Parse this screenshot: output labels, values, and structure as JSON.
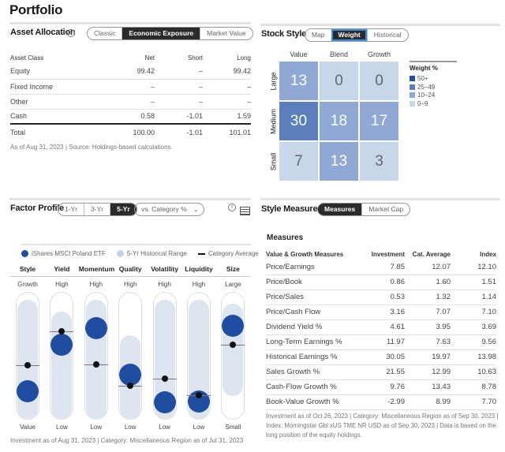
{
  "page_title": "Portfolio",
  "asset_allocation": {
    "title": "Asset Allocation",
    "tabs": [
      "Classic",
      "Economic Exposure",
      "Market Value"
    ],
    "active_tab": "Economic Exposure",
    "headers": [
      "Asset Class",
      "Net",
      "Short",
      "Long"
    ],
    "rows": [
      [
        "Equity",
        "99.42",
        "–",
        "99.42"
      ],
      [
        "Fixed Income",
        "–",
        "–",
        "–"
      ],
      [
        "Other",
        "–",
        "–",
        "–"
      ],
      [
        "Cash",
        "0.58",
        "-1.01",
        "1.59"
      ]
    ],
    "total": [
      "Total",
      "100.00",
      "-1.01",
      "101.01"
    ],
    "footnote": "As of Aug 31, 2023 | Source: Holdings-based calculations."
  },
  "stock_style": {
    "title": "Stock Style",
    "tabs": [
      "Map",
      "Weight",
      "Historical"
    ],
    "active_tab": "Weight",
    "columns": [
      "Value",
      "Blend",
      "Growth"
    ],
    "rows": [
      "Large",
      "Medium",
      "Small"
    ],
    "values": [
      [
        13,
        0,
        0
      ],
      [
        30,
        18,
        17
      ],
      [
        7,
        13,
        3
      ]
    ],
    "legend_title": "Weight %",
    "legend": [
      {
        "label": "50+",
        "color": "#1f4e9c"
      },
      {
        "label": "25–49",
        "color": "#5b7fbd"
      },
      {
        "label": "10–24",
        "color": "#8fa9d4"
      },
      {
        "label": "0–9",
        "color": "#c8d6ea"
      }
    ]
  },
  "factor_profile": {
    "title": "Factor Profile",
    "tabs": [
      "1-Yr",
      "3-Yr",
      "5-Yr"
    ],
    "active_tab": "5-Yr",
    "dropdown": "vs. Category %",
    "legend": {
      "fund": "iShares MSCI Poland ETF",
      "range": "5-Yr Historical Range",
      "category": "Category Average"
    },
    "colors": {
      "fund": "#1f4ea0",
      "range": "#dde5f1"
    },
    "factors": [
      {
        "name": "Style",
        "top": "Growth",
        "bottom": "Value",
        "fund": 23,
        "category": 43,
        "range": [
          0,
          95
        ]
      },
      {
        "name": "Yield",
        "top": "High",
        "bottom": "Low",
        "fund": 59,
        "category": 70,
        "range": [
          0,
          86
        ]
      },
      {
        "name": "Momentum",
        "top": "High",
        "bottom": "Low",
        "fund": 72,
        "category": 44,
        "range": [
          0,
          95
        ]
      },
      {
        "name": "Quality",
        "top": "High",
        "bottom": "Low",
        "fund": 36,
        "category": 27,
        "range": [
          0,
          67
        ]
      },
      {
        "name": "Volatility",
        "top": "High",
        "bottom": "Low",
        "fund": 14,
        "category": 33,
        "range": [
          0,
          95
        ]
      },
      {
        "name": "Liquidity",
        "top": "High",
        "bottom": "Low",
        "fund": 15,
        "category": 20,
        "range": [
          0,
          95
        ]
      },
      {
        "name": "Size",
        "top": "Large",
        "bottom": "Small",
        "fund": 74,
        "category": 59,
        "range": [
          18,
          92
        ]
      }
    ],
    "footnote": "Investment as of Aug 31, 2023 | Category: Miscellaneous Region as of Jul 31, 2023"
  },
  "style_measures": {
    "title": "Style Measures",
    "tabs": [
      "Measures",
      "Market Cap"
    ],
    "active_tab": "Measures",
    "subtitle": "Measures",
    "headers": [
      "Value & Growth Measures",
      "Investment",
      "Cat. Average",
      "Index"
    ],
    "rows": [
      [
        "Price/Earnings",
        "7.85",
        "12.07",
        "12.10"
      ],
      [
        "Price/Book",
        "0.86",
        "1.60",
        "1.51"
      ],
      [
        "Price/Sales",
        "0.53",
        "1.32",
        "1.14"
      ],
      [
        "Price/Cash Flow",
        "3.16",
        "7.07",
        "7.10"
      ],
      [
        "Dividend Yield %",
        "4.61",
        "3.95",
        "3.69"
      ],
      [
        "Long-Term Earnings %",
        "11.97",
        "7.63",
        "9.56"
      ],
      [
        "Historical Earnings %",
        "30.05",
        "19.97",
        "13.98"
      ],
      [
        "Sales Growth %",
        "21.55",
        "12.99",
        "10.63"
      ],
      [
        "Cash-Flow Growth %",
        "9.76",
        "13.43",
        "8.78"
      ],
      [
        "Book-Value Growth %",
        "-2.99",
        "8.99",
        "7.70"
      ]
    ],
    "footnote": "Investment as of Oct 26, 2023 | Category: Miscellaneous Region as of Sep 30, 2023 | Index: Morningstar Gbl xUS TME NR USD as of Sep 30, 2023 | Data is based on the long position of the equity holdings."
  }
}
